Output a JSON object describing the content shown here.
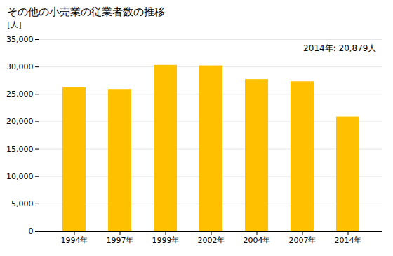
{
  "chart_data": {
    "type": "bar",
    "title": "その他の小売業の従業者数の推移",
    "ylabel": "［人］",
    "annotation": "2014年: 20,879人",
    "categories": [
      "1994年",
      "1997年",
      "1999年",
      "2002年",
      "2004年",
      "2007年",
      "2014年"
    ],
    "values": [
      26200,
      25900,
      30300,
      30200,
      27700,
      27300,
      20879
    ],
    "color": "#FFC000",
    "ylim": [
      0,
      35000
    ],
    "yticks": [
      0,
      {
        "value": 5000,
        "label": "5,000"
      },
      {
        "value": 10000,
        "label": "10,000"
      },
      {
        "value": 15000,
        "label": "15,000"
      },
      {
        "value": 20000,
        "label": "20,000"
      },
      {
        "value": 25000,
        "label": "25,000"
      },
      {
        "value": 30000,
        "label": "30,000"
      },
      {
        "value": 35000,
        "label": "35,000"
      }
    ],
    "grid": true
  }
}
